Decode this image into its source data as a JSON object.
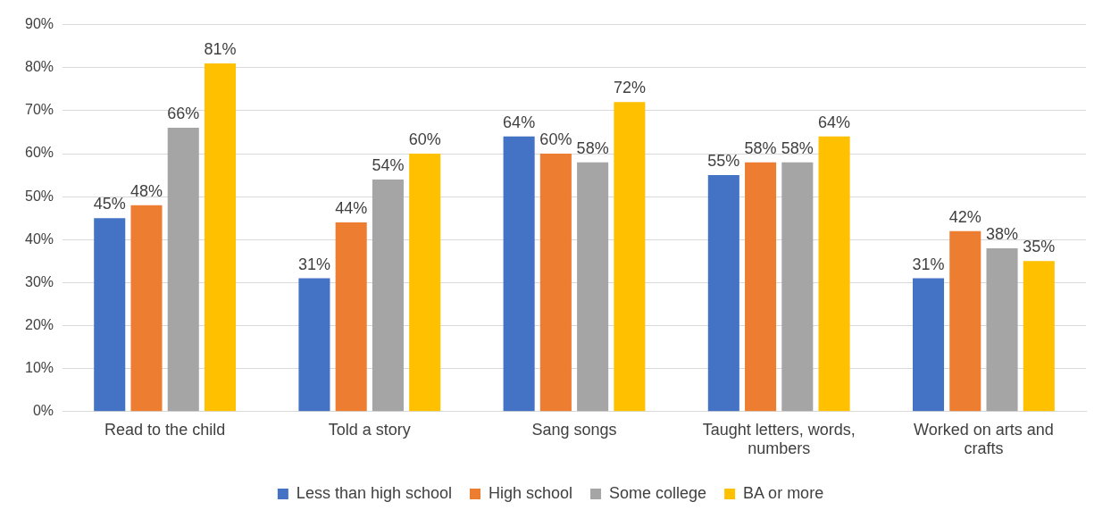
{
  "chart_data": {
    "type": "bar",
    "categories": [
      "Read to the child",
      "Told a story",
      "Sang songs",
      "Taught letters, words, numbers",
      "Worked on arts and crafts"
    ],
    "series": [
      {
        "name": "Less than high school",
        "color": "#4472c4",
        "values": [
          45,
          31,
          64,
          55,
          31
        ],
        "value_labels": [
          "45%",
          "31%",
          "64%",
          "55%",
          "31%"
        ]
      },
      {
        "name": "High school",
        "color": "#ed7d31",
        "values": [
          48,
          44,
          60,
          58,
          42
        ],
        "value_labels": [
          "48%",
          "44%",
          "60%",
          "58%",
          "42%"
        ]
      },
      {
        "name": "Some college",
        "color": "#a5a5a5",
        "values": [
          66,
          54,
          58,
          58,
          38
        ],
        "value_labels": [
          "66%",
          "54%",
          "58%",
          "58%",
          "38%"
        ]
      },
      {
        "name": "BA or more",
        "color": "#ffc000",
        "values": [
          81,
          60,
          72,
          64,
          35
        ],
        "value_labels": [
          "81%",
          "60%",
          "72%",
          "64%",
          "35%"
        ]
      }
    ],
    "ylim": [
      0,
      90
    ],
    "yticks": [
      {
        "value": 0,
        "label": "0%"
      },
      {
        "value": 10,
        "label": "10%"
      },
      {
        "value": 20,
        "label": "20%"
      },
      {
        "value": 30,
        "label": "30%"
      },
      {
        "value": 40,
        "label": "40%"
      },
      {
        "value": 50,
        "label": "50%"
      },
      {
        "value": 60,
        "label": "60%"
      },
      {
        "value": 70,
        "label": "70%"
      },
      {
        "value": 80,
        "label": "80%"
      },
      {
        "value": 90,
        "label": "90%"
      }
    ],
    "grid": "y",
    "legend": "bottom"
  }
}
